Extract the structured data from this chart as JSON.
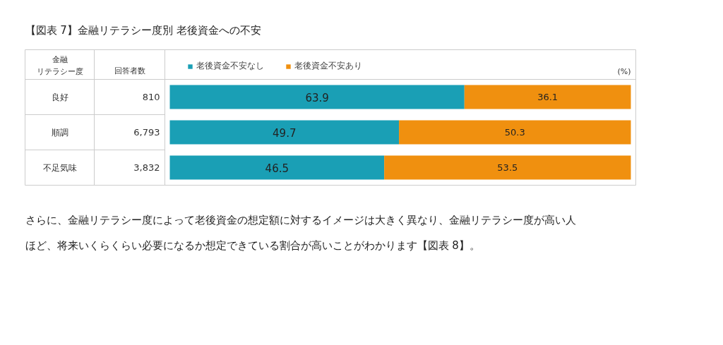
{
  "chart_data": {
    "type": "bar",
    "orientation": "horizontal",
    "stacked": true,
    "data_labels": true,
    "title": "【図表 7】金融リテラシー度別  老後資金への不安",
    "ylabel": "金融リテラシー度",
    "xlabel": "(%)",
    "categories": [
      "良好",
      "順調",
      "不足気味"
    ],
    "series": [
      {
        "name": "老後資金不安なし",
        "color": "#1a9fb5",
        "values": [
          63.9,
          49.7,
          46.5
        ]
      },
      {
        "name": "老後資金不安あり",
        "color": "#f0900f",
        "values": [
          36.1,
          50.3,
          53.5
        ]
      }
    ],
    "legend": "top",
    "annotations": [
      "回答者数",
      "810",
      "6,793",
      "3,832",
      "さらに、金融リテラシー度によって老後資金の想定額に対するイメージは大きく異なり、金融リテラシー度が高い人ほど、将来いくらくらい必要になるか想定できている割合が高いことがわかります【図表 8】。"
    ]
  }
}
